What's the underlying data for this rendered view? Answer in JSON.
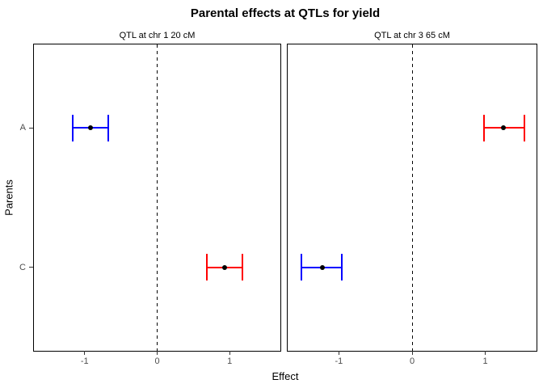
{
  "chart_data": {
    "type": "errorbar",
    "title": "Parental effects at QTLs for yield",
    "xlabel": "Effect",
    "ylabel": "Parents",
    "categories": [
      "A",
      "C"
    ],
    "xlim": [
      -1.7,
      1.7
    ],
    "x_ticks": [
      -1,
      0,
      1
    ],
    "reference_line_x": 0,
    "reference_line_style": "dashed",
    "grid": false,
    "colors": {
      "positive_or_red_series": "#ff0000",
      "negative_or_blue_series": "#0000ff",
      "point": "#000000"
    },
    "panels": [
      {
        "label": "QTL at chr 1 20 cM",
        "points": [
          {
            "parent": "A",
            "estimate": -0.92,
            "ci_low": -1.17,
            "ci_high": -0.68,
            "color": "#0000ff"
          },
          {
            "parent": "C",
            "estimate": 0.93,
            "ci_low": 0.69,
            "ci_high": 1.18,
            "color": "#ff0000"
          }
        ]
      },
      {
        "label": "QTL at chr 3 65 cM",
        "points": [
          {
            "parent": "A",
            "estimate": 1.25,
            "ci_low": 0.98,
            "ci_high": 1.53,
            "color": "#ff0000"
          },
          {
            "parent": "C",
            "estimate": -1.23,
            "ci_low": -1.51,
            "ci_high": -0.96,
            "color": "#0000ff"
          }
        ]
      }
    ]
  }
}
